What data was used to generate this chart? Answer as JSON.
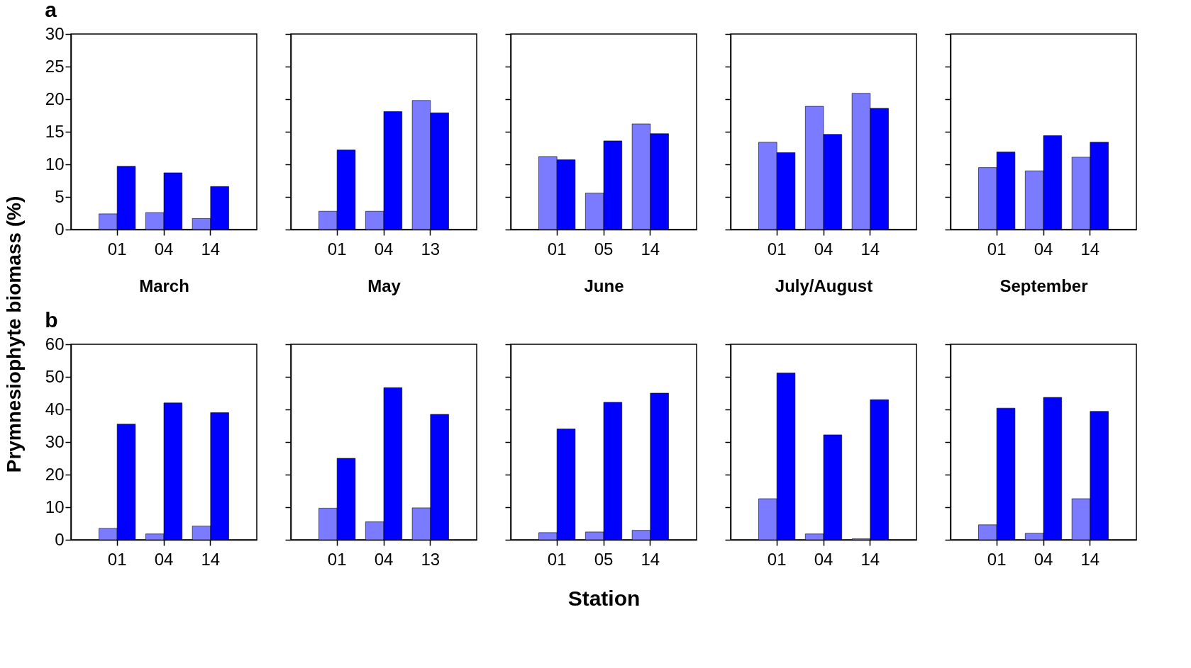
{
  "chart_data": [
    {
      "type": "bar",
      "title": "a",
      "ylabel": "Prymnesiophyte biomass (%)",
      "xlabel": "March",
      "categories": [
        "01",
        "04",
        "14"
      ],
      "ylim": [
        0,
        30
      ],
      "yticks": [
        0,
        5,
        10,
        15,
        20,
        25,
        30
      ],
      "series": [
        {
          "color": "#7b7bff",
          "values": [
            2.4,
            2.6,
            1.7
          ]
        },
        {
          "color": "#0000ff",
          "values": [
            9.7,
            8.7,
            6.6
          ]
        }
      ]
    },
    {
      "type": "bar",
      "xlabel": "May",
      "categories": [
        "01",
        "04",
        "13"
      ],
      "ylim": [
        0,
        30
      ],
      "yticks": [
        0,
        5,
        10,
        15,
        20,
        25,
        30
      ],
      "tick_labels": "x",
      "series": [
        {
          "color": "#7b7bff",
          "values": [
            2.8,
            2.8,
            19.8
          ]
        },
        {
          "color": "#0000ff",
          "values": [
            12.2,
            18.1,
            17.9
          ]
        }
      ]
    },
    {
      "type": "bar",
      "xlabel": "June",
      "categories": [
        "01",
        "05",
        "14"
      ],
      "ylim": [
        0,
        30
      ],
      "yticks": [
        0,
        5,
        10,
        15,
        20,
        25,
        30
      ],
      "tick_labels": "x",
      "series": [
        {
          "color": "#7b7bff",
          "values": [
            11.2,
            5.6,
            16.2
          ]
        },
        {
          "color": "#0000ff",
          "values": [
            10.7,
            13.6,
            14.7
          ]
        }
      ]
    },
    {
      "type": "bar",
      "xlabel": "July/August",
      "categories": [
        "01",
        "04",
        "14"
      ],
      "ylim": [
        0,
        30
      ],
      "yticks": [
        0,
        5,
        10,
        15,
        20,
        25,
        30
      ],
      "tick_labels": "x",
      "series": [
        {
          "color": "#7b7bff",
          "values": [
            13.4,
            18.9,
            20.9
          ]
        },
        {
          "color": "#0000ff",
          "values": [
            11.8,
            14.6,
            18.6
          ]
        }
      ]
    },
    {
      "type": "bar",
      "xlabel": "September",
      "categories": [
        "01",
        "04",
        "14"
      ],
      "ylim": [
        0,
        30
      ],
      "yticks": [
        0,
        5,
        10,
        15,
        20,
        25,
        30
      ],
      "tick_labels": "x",
      "series": [
        {
          "color": "#7b7bff",
          "values": [
            9.5,
            9.0,
            11.1
          ]
        },
        {
          "color": "#0000ff",
          "values": [
            11.9,
            14.4,
            13.4
          ]
        }
      ]
    },
    {
      "type": "bar",
      "title": "b",
      "categories": [
        "01",
        "04",
        "14"
      ],
      "ylim": [
        0,
        60
      ],
      "yticks": [
        0,
        10,
        20,
        30,
        40,
        50,
        60
      ],
      "series": [
        {
          "color": "#7b7bff",
          "values": [
            3.5,
            1.8,
            4.2
          ]
        },
        {
          "color": "#0000ff",
          "values": [
            35.5,
            42,
            39
          ]
        }
      ]
    },
    {
      "type": "bar",
      "categories": [
        "01",
        "04",
        "13"
      ],
      "ylim": [
        0,
        60
      ],
      "yticks": [
        0,
        10,
        20,
        30,
        40,
        50,
        60
      ],
      "tick_labels": "x",
      "series": [
        {
          "color": "#7b7bff",
          "values": [
            9.7,
            5.5,
            9.8
          ]
        },
        {
          "color": "#0000ff",
          "values": [
            25,
            46.7,
            38.5
          ]
        }
      ]
    },
    {
      "type": "bar",
      "xlabel": "Station",
      "categories": [
        "01",
        "05",
        "14"
      ],
      "ylim": [
        0,
        60
      ],
      "yticks": [
        0,
        10,
        20,
        30,
        40,
        50,
        60
      ],
      "tick_labels": "x",
      "series": [
        {
          "color": "#7b7bff",
          "values": [
            2.2,
            2.4,
            2.9
          ]
        },
        {
          "color": "#0000ff",
          "values": [
            34,
            42.2,
            45
          ]
        }
      ]
    },
    {
      "type": "bar",
      "categories": [
        "01",
        "04",
        "14"
      ],
      "ylim": [
        0,
        60
      ],
      "yticks": [
        0,
        10,
        20,
        30,
        40,
        50,
        60
      ],
      "tick_labels": "x",
      "series": [
        {
          "color": "#7b7bff",
          "values": [
            12.6,
            1.8,
            0.3
          ]
        },
        {
          "color": "#0000ff",
          "values": [
            51.2,
            32.2,
            43
          ]
        }
      ]
    },
    {
      "type": "bar",
      "categories": [
        "01",
        "04",
        "14"
      ],
      "ylim": [
        0,
        60
      ],
      "yticks": [
        0,
        10,
        20,
        30,
        40,
        50,
        60
      ],
      "tick_labels": "x",
      "series": [
        {
          "color": "#7b7bff",
          "values": [
            4.6,
            2,
            12.6
          ]
        },
        {
          "color": "#0000ff",
          "values": [
            40.4,
            43.7,
            39.4
          ]
        }
      ]
    }
  ]
}
